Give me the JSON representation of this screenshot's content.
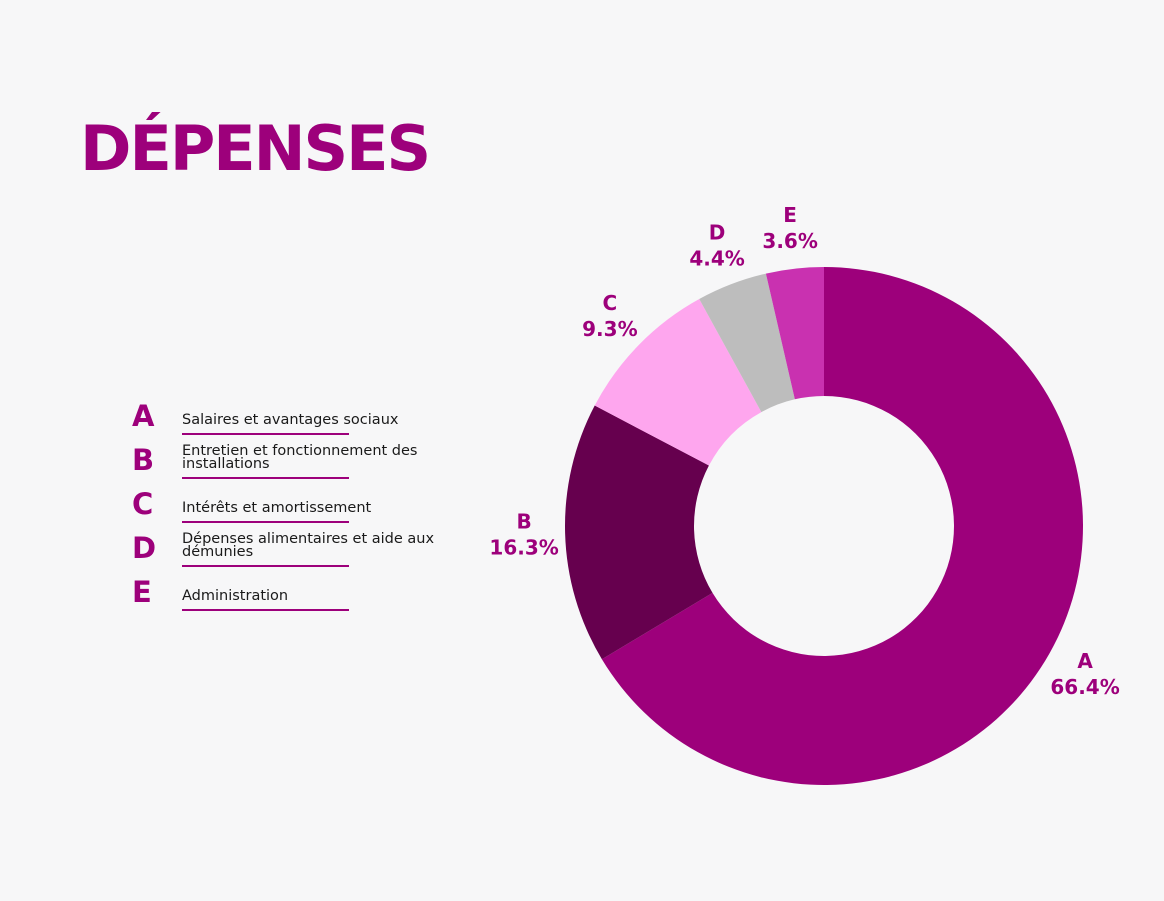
{
  "title": "DÉPENSES",
  "legend": [
    {
      "letter": "A",
      "text": "Salaires et avantages sociaux"
    },
    {
      "letter": "B",
      "text": "Entretien et fonctionnement des installations"
    },
    {
      "letter": "C",
      "text": "Intérêts et amortissement"
    },
    {
      "letter": "D",
      "text": "Dépenses alimentaires et aide aux démunies"
    },
    {
      "letter": "E",
      "text": "Administration"
    }
  ],
  "chart_data": {
    "type": "pie",
    "title": "DÉPENSES",
    "categories": [
      "A",
      "B",
      "C",
      "D",
      "E"
    ],
    "values": [
      66.4,
      16.3,
      9.3,
      4.4,
      3.6
    ],
    "labels": [
      "66.4%",
      "16.3%",
      "9.3%",
      "4.4%",
      "3.6%"
    ],
    "colors": [
      "#9d007b",
      "#66004e",
      "#fea6ee",
      "#bdbdbd",
      "#c931b0"
    ],
    "donut": true,
    "legend_placement": "left"
  }
}
